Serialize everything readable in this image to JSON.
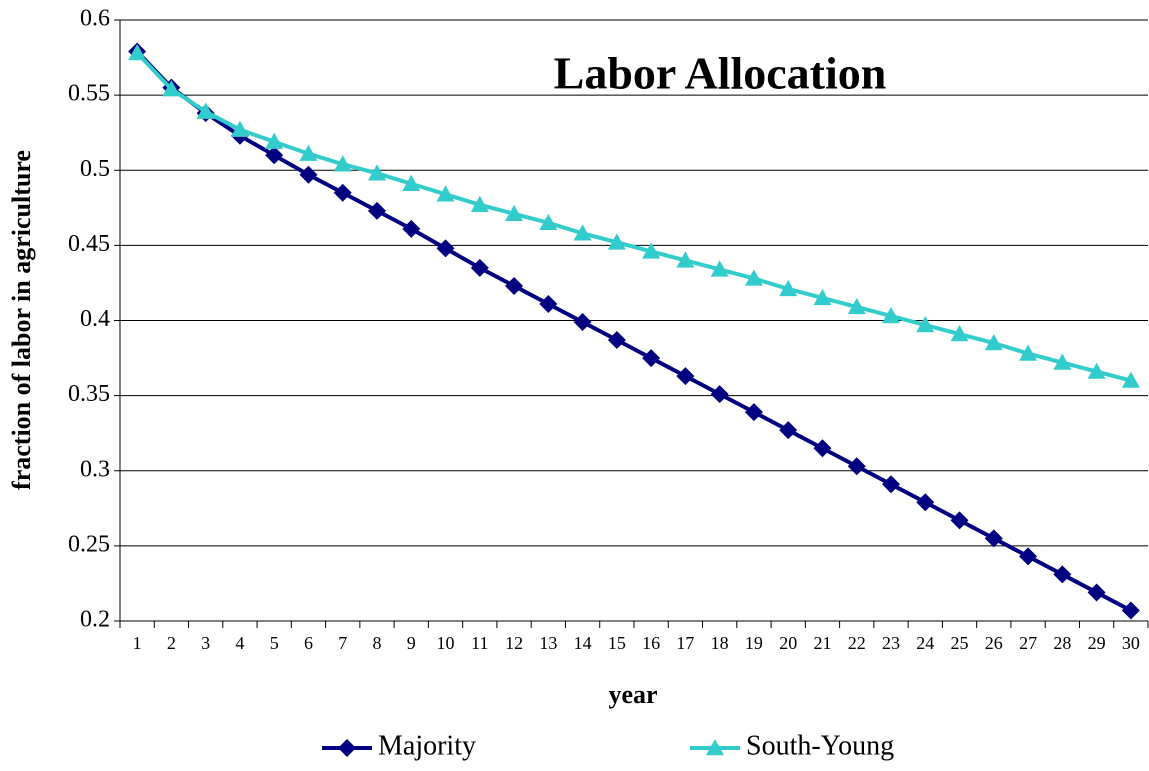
{
  "chart_data": {
    "type": "line",
    "title": "Labor Allocation",
    "x_label": "year",
    "y_label": "fraction of labor in agriculture",
    "categories": [
      1,
      2,
      3,
      4,
      5,
      6,
      7,
      8,
      9,
      10,
      11,
      12,
      13,
      14,
      15,
      16,
      17,
      18,
      19,
      20,
      21,
      22,
      23,
      24,
      25,
      26,
      27,
      28,
      29,
      30
    ],
    "series": [
      {
        "name": "Majority",
        "color": "#000080",
        "marker": "diamond",
        "values": [
          0.579,
          0.555,
          0.538,
          0.523,
          0.51,
          0.497,
          0.485,
          0.473,
          0.461,
          0.448,
          0.435,
          0.423,
          0.411,
          0.399,
          0.387,
          0.375,
          0.363,
          0.351,
          0.339,
          0.327,
          0.315,
          0.303,
          0.291,
          0.279,
          0.267,
          0.255,
          0.243,
          0.231,
          0.219,
          0.207
        ]
      },
      {
        "name": "South-Young",
        "color": "#33cccc",
        "marker": "triangle",
        "values": [
          0.578,
          0.554,
          0.539,
          0.527,
          0.519,
          0.511,
          0.504,
          0.498,
          0.491,
          0.484,
          0.477,
          0.471,
          0.465,
          0.458,
          0.452,
          0.446,
          0.44,
          0.434,
          0.428,
          0.421,
          0.415,
          0.409,
          0.403,
          0.397,
          0.391,
          0.385,
          0.378,
          0.372,
          0.366,
          0.36
        ]
      }
    ],
    "ylim": [
      0.2,
      0.6
    ],
    "yticks": [
      0.2,
      0.25,
      0.3,
      0.35,
      0.4,
      0.45,
      0.5,
      0.55,
      0.6
    ],
    "grid": true
  }
}
